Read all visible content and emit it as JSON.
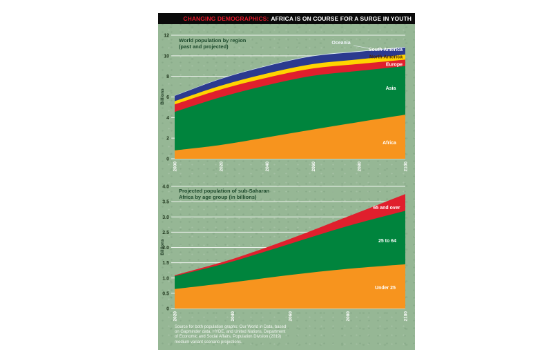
{
  "header": {
    "kicker": "CHANGING DEMOGRAPHICS:",
    "title": "AFRICA IS ON COURSE FOR A SURGE IN YOUTH",
    "kicker_color": "#e8192c",
    "bar_color": "#0a0a0a"
  },
  "panel": {
    "background_color": "#96b795"
  },
  "chart_data": [
    {
      "type": "area",
      "stacked": true,
      "title": "World population by region (past and projected)",
      "title_lines": [
        "World population by region",
        "(past and projected)"
      ],
      "ylabel": "Billions",
      "xlabel": "",
      "x": [
        2000,
        2020,
        2040,
        2060,
        2080,
        2100
      ],
      "x_ticks": [
        "2000",
        "2020",
        "2040",
        "2060",
        "2080",
        "2100"
      ],
      "ylim": [
        0,
        12
      ],
      "yticks": [
        "12",
        "10",
        "8",
        "6",
        "4",
        "2",
        "0"
      ],
      "grid": "horizontal-white",
      "legend_position": "labels-on-areas",
      "series": [
        {
          "name": "Africa",
          "color": "#f7941e",
          "values": [
            0.81,
            1.34,
            2.08,
            2.84,
            3.57,
            4.28
          ]
        },
        {
          "name": "Asia",
          "color": "#00843d",
          "values": [
            3.74,
            4.64,
            5.06,
            5.22,
            4.97,
            4.72
          ]
        },
        {
          "name": "Europe",
          "color": "#e01f2d",
          "values": [
            0.73,
            0.75,
            0.73,
            0.71,
            0.67,
            0.63
          ]
        },
        {
          "name": "North America",
          "color": "#ffd400",
          "values": [
            0.31,
            0.37,
            0.41,
            0.43,
            0.45,
            0.49
          ]
        },
        {
          "name": "South America",
          "color": "#2b3a8f",
          "values": [
            0.52,
            0.65,
            0.72,
            0.76,
            0.73,
            0.68
          ]
        },
        {
          "name": "Oceania",
          "color": "#d9e7f0",
          "values": [
            0.03,
            0.04,
            0.05,
            0.06,
            0.07,
            0.07
          ]
        }
      ]
    },
    {
      "type": "area",
      "stacked": true,
      "title": "Projected population of sub-Saharan Africa by age group (in billions)",
      "title_lines": [
        "Projected population of sub-Saharan",
        "Africa by age group (in billions)"
      ],
      "ylabel": "Billions",
      "xlabel": "",
      "x": [
        2020,
        2040,
        2060,
        2080,
        2100
      ],
      "x_ticks": [
        "2020",
        "2040",
        "2060",
        "2080",
        "2100"
      ],
      "ylim": [
        0,
        4
      ],
      "yticks": [
        "4.0",
        "3.5",
        "3.0",
        "2.5",
        "2.0",
        "1.5",
        "1.0",
        "0.5",
        "0"
      ],
      "grid": "horizontal-white",
      "legend_position": "labels-on-areas",
      "series": [
        {
          "name": "Under 25",
          "color": "#f7941e",
          "values": [
            0.64,
            0.86,
            1.1,
            1.3,
            1.45
          ]
        },
        {
          "name": "25 to 64",
          "color": "#00843d",
          "values": [
            0.42,
            0.68,
            1.02,
            1.4,
            1.75
          ]
        },
        {
          "name": "65 and over",
          "color": "#e01f2d",
          "values": [
            0.03,
            0.08,
            0.16,
            0.31,
            0.55
          ]
        }
      ]
    }
  ],
  "footer": {
    "lines": [
      "Source for both population graphs: Our World in Data, based",
      "on Gapminder data, HYDE, and United Nations, Department",
      "of Economic and Social Affairs, Population Division (2019)",
      "medium variant scenario projections."
    ]
  }
}
